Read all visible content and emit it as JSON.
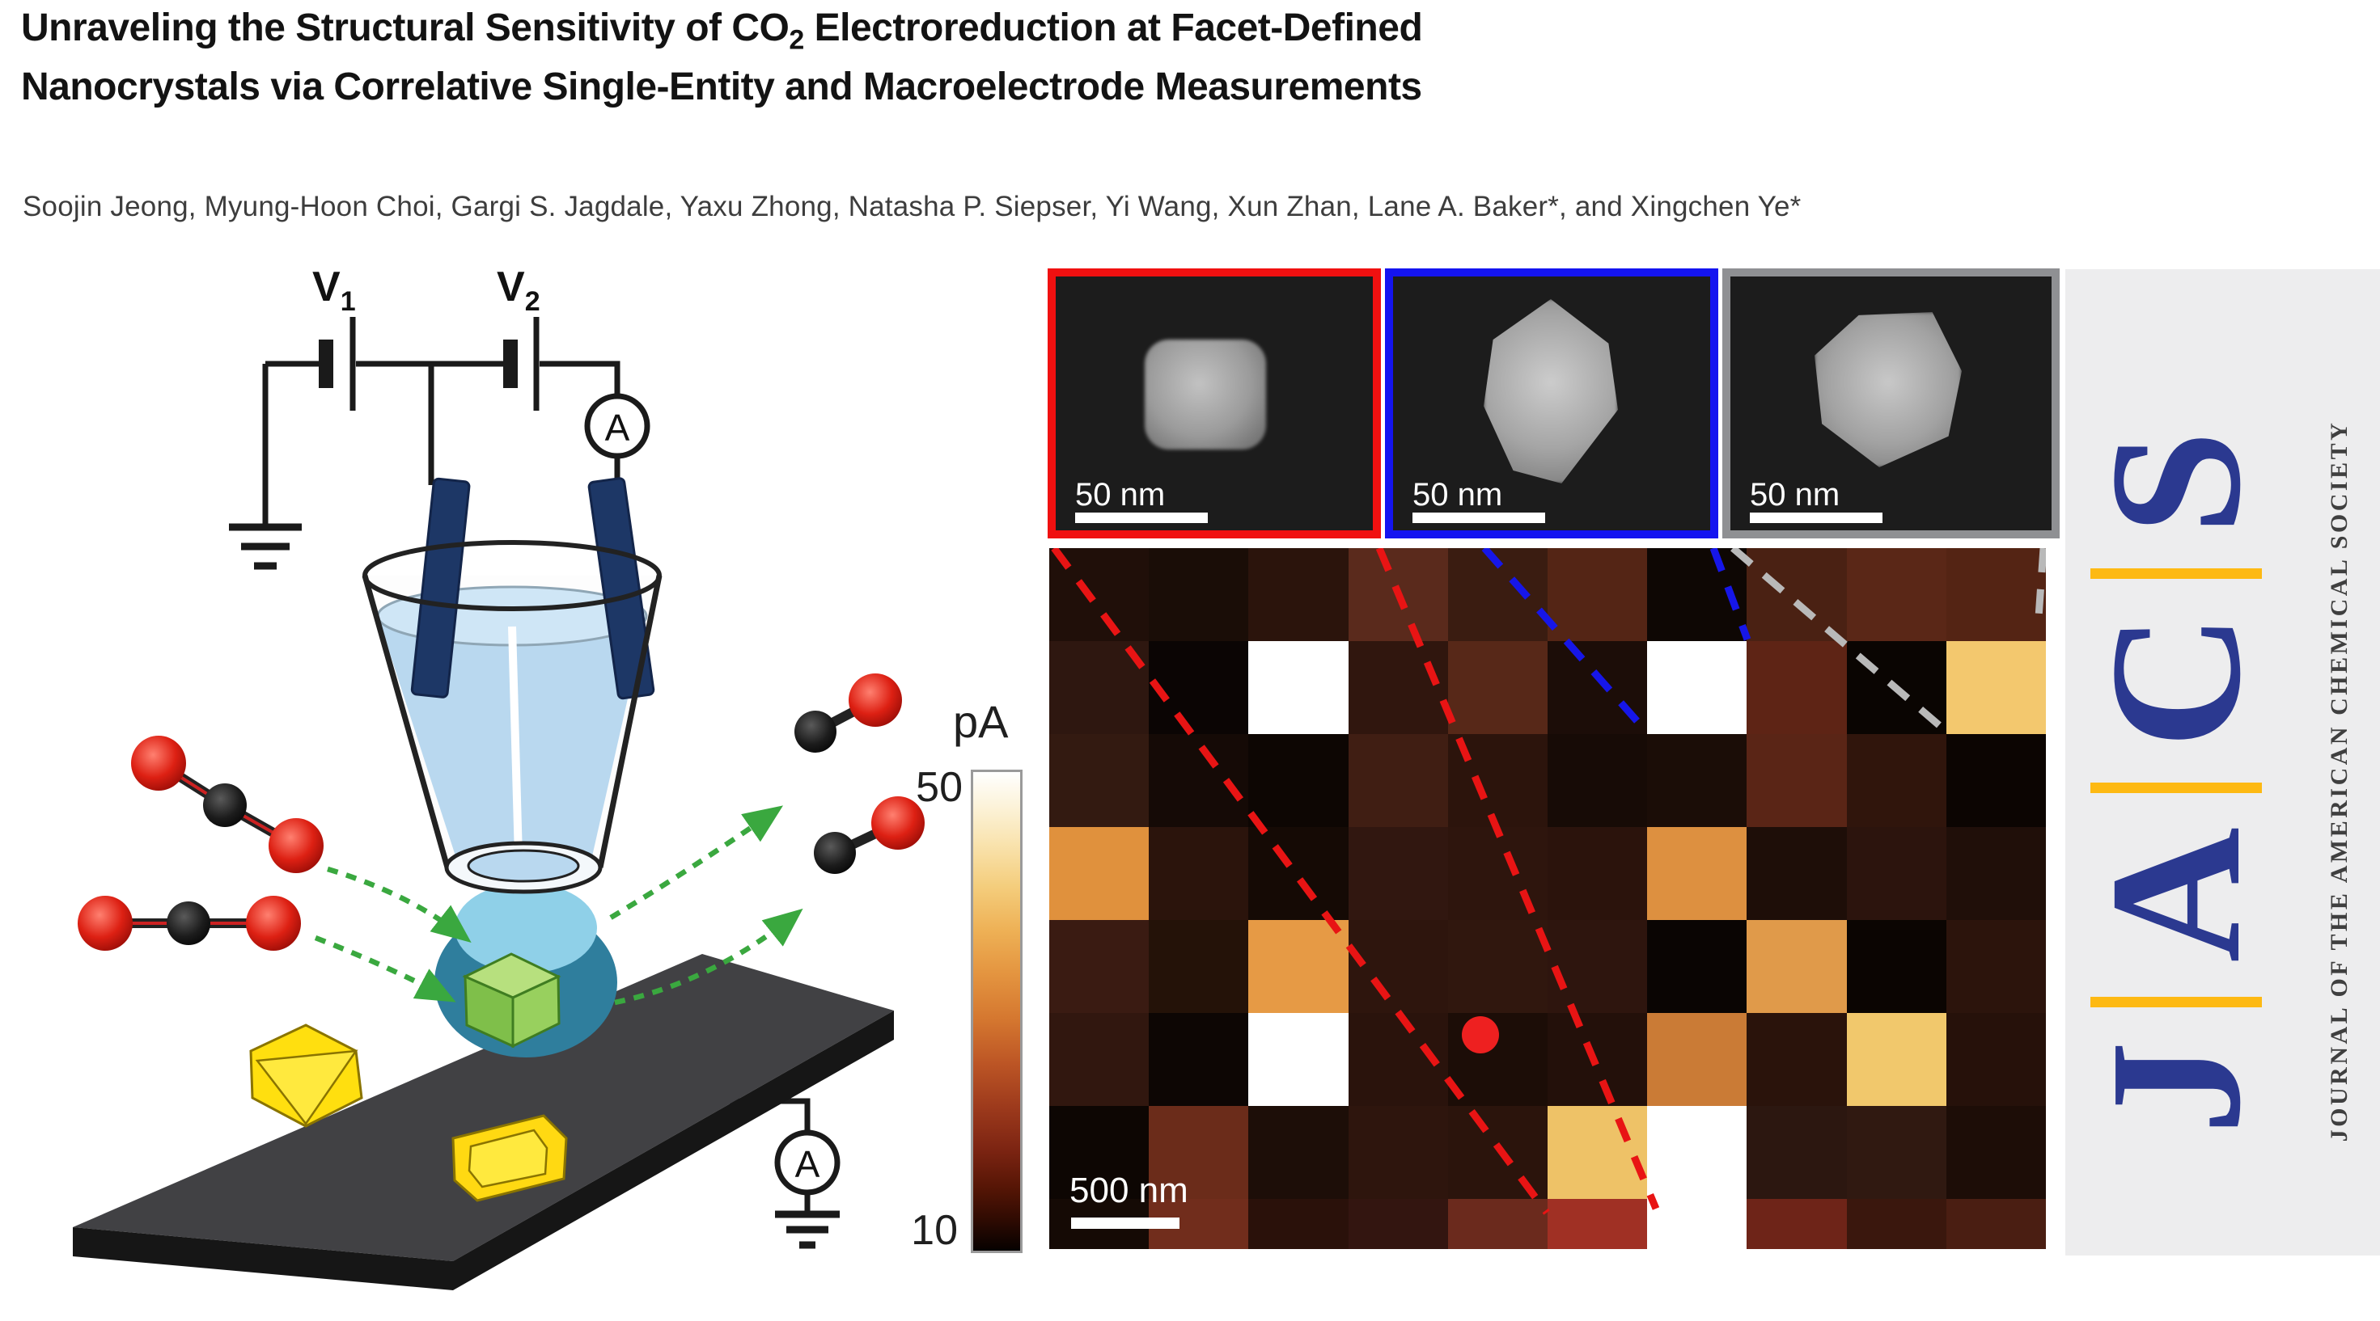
{
  "title": {
    "line1_pre": "Unraveling the Structural Sensitivity of CO",
    "line1_sub": "2",
    "line1_post": " Electroreduction at Facet-Defined",
    "line2": "Nanocrystals via Correlative Single-Entity and Macroelectrode Measurements"
  },
  "authors": "Soojin Jeong, Myung-Hoon Choi, Gargi S. Jagdale, Yaxu Zhong, Natasha P. Siepser, Yi Wang, Xun Zhan, Lane A. Baker*, and Xingchen Ye*",
  "schematic": {
    "v1": {
      "base": "V",
      "sub": "1"
    },
    "v2": {
      "base": "V",
      "sub": "2"
    },
    "ammeter_label": "A",
    "wire_color": "#1a1a1a",
    "electrode_color": "#1d3766",
    "arrow_color": "#3aa83f",
    "co2_red": "#d41b10",
    "co2_black": "#1b1b1b",
    "crystal_yellow": "#ffdf0f",
    "crystal_green": "#86c44a",
    "substrate_color": "#414144",
    "droplet_color": "#2f7e9d",
    "pipette_liquid": "#b9d8ef"
  },
  "insets": [
    {
      "name": "sem-cube-nanocrystal",
      "frame_color": "#f01010",
      "scale_label": "50 nm"
    },
    {
      "name": "sem-rhombic-dodecahedron-nanocrystal",
      "frame_color": "#1414f0",
      "scale_label": "50 nm"
    },
    {
      "name": "sem-octahedron-nanocrystal",
      "frame_color": "#8f9093",
      "scale_label": "50 nm"
    }
  ],
  "chart_data": {
    "type": "heatmap",
    "title": "Single-entity electrochemical current map",
    "unit": "pA",
    "colorbar": {
      "label": "pA",
      "max_label": "50",
      "min_label": "10",
      "max": 50,
      "min": 10,
      "gradient_top_to_bottom": [
        "#ffffff",
        "#f9e3ae",
        "#eeb156",
        "#d4762f",
        "#9d3a1c",
        "#551505",
        "#060100"
      ],
      "position": "left"
    },
    "scale_bar_label": "500 nm",
    "rows": 8,
    "cols": 10,
    "grid_colors": [
      [
        "#200f09",
        "#1a0d07",
        "#2b140c",
        "#5a2a1c",
        "#3a1c11",
        "#542515",
        "#0e0704",
        "#4a2113",
        "#5a2717",
        "#542414"
      ],
      [
        "#2e1710",
        "#0b0504",
        "#ffffff",
        "#30160e",
        "#572818",
        "#1c0d08",
        "#ffffff",
        "#5e2415",
        "#0a0502",
        "#f3c86e"
      ],
      [
        "#331a11",
        "#150a06",
        "#0d0603",
        "#401e13",
        "#2c140c",
        "#170b06",
        "#1b0d07",
        "#5a2516",
        "#30150c",
        "#0c0502"
      ],
      [
        "#e0913d",
        "#2b140c",
        "#150a05",
        "#311710",
        "#2e150d",
        "#2b130c",
        "#dd9040",
        "#1e0e08",
        "#2c140d",
        "#200f09"
      ],
      [
        "#3a1b12",
        "#241208",
        "#e69a45",
        "#2e150d",
        "#30170e",
        "#2e150e",
        "#0a0503",
        "#e09a4a",
        "#0b0502",
        "#2c140c"
      ],
      [
        "#31170f",
        "#0d0604",
        "#ffffff",
        "#2a130c",
        "#1c0d07",
        "#23100a",
        "#ca7b36",
        "#2a130b",
        "#f1c86c",
        "#26110a"
      ],
      [
        "#0d0603",
        "#6b2c1a",
        "#1d0e08",
        "#2e150d",
        "#2b140c",
        "#eec267",
        "#ffffff",
        "#2c1710",
        "#301911",
        "#1d0d07"
      ],
      [
        "#150a05",
        "#712d1c",
        "#2a110a",
        "#331510",
        "#6b2a1d",
        "#a03024",
        "#ffffff",
        "#6e2418",
        "#3a170d",
        "#4a1e12"
      ]
    ],
    "grid_values_pA": [
      [
        13,
        12,
        14,
        22,
        16,
        21,
        10,
        19,
        22,
        21
      ],
      [
        15,
        10,
        50,
        15,
        21,
        12,
        50,
        22,
        10,
        42
      ],
      [
        15,
        11,
        10,
        17,
        14,
        11,
        12,
        21,
        15,
        10
      ],
      [
        35,
        14,
        11,
        15,
        14,
        14,
        34,
        12,
        14,
        13
      ],
      [
        16,
        13,
        36,
        14,
        15,
        14,
        10,
        35,
        10,
        14
      ],
      [
        15,
        10,
        50,
        14,
        12,
        13,
        31,
        14,
        41,
        13
      ],
      [
        10,
        23,
        12,
        14,
        14,
        41,
        50,
        15,
        15,
        12
      ],
      [
        11,
        24,
        13,
        15,
        23,
        26,
        50,
        24,
        16,
        19
      ]
    ],
    "marker": {
      "type": "dot",
      "color": "#ee2020",
      "row": 6,
      "col": 5
    },
    "connectors": [
      {
        "from": "red-inset",
        "color": "#e81414",
        "style": "dashed"
      },
      {
        "from": "blue-inset",
        "color": "#1616e8",
        "style": "dashed"
      },
      {
        "from": "gray-inset",
        "color": "#b9b9b9",
        "style": "dashed"
      }
    ],
    "grid_on": false
  },
  "jacs": {
    "letters": [
      "J",
      "A",
      "C",
      "S"
    ],
    "letter_color": "#2b3990",
    "separator_color": "#fdb913",
    "background": "#ededee",
    "tagline": "JOURNAL OF THE AMERICAN CHEMICAL SOCIETY"
  }
}
